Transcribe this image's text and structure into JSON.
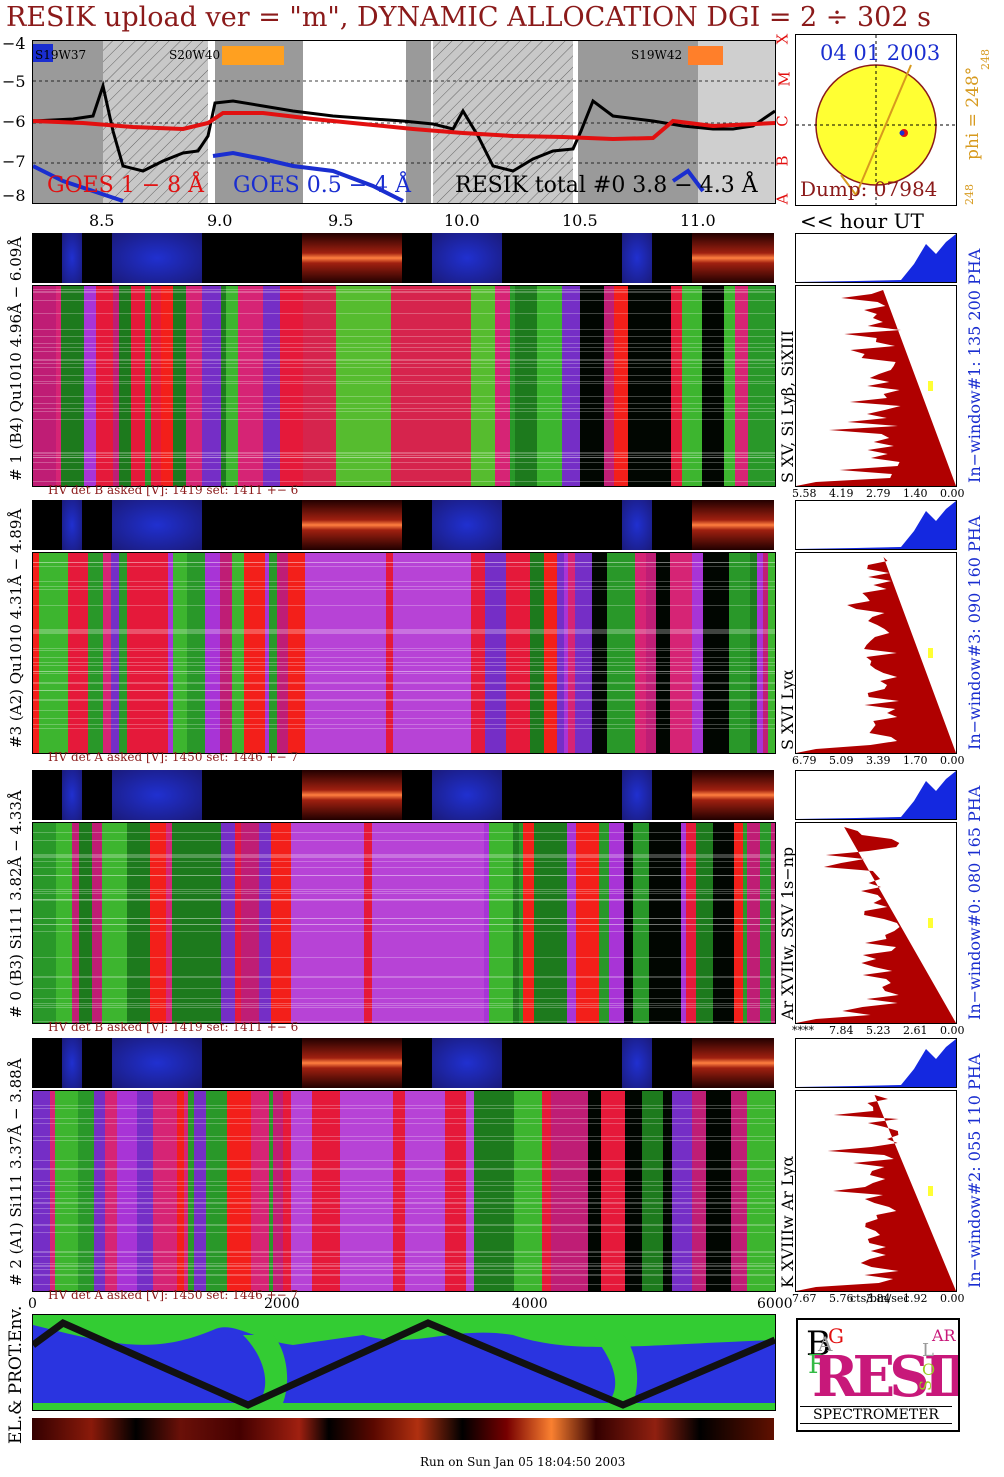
{
  "title": "RESIK upload ver = \"m\", DYNAMIC ALLOCATION  DGI =   2 ÷ 302 s",
  "goes": {
    "y_ticks": [
      "−4",
      "−5",
      "−6",
      "−7",
      "−8"
    ],
    "class_letters": [
      "X",
      "M",
      "C",
      "B",
      "A"
    ],
    "legend_goes_long": "GOES 1 − 8 Å",
    "legend_goes_short": "GOES 0.5 − 4 Å",
    "legend_resik": "RESIK total #0  3.8 − 4.3 Å",
    "regions": [
      {
        "label": "S19W37"
      },
      {
        "label": "S20W40"
      },
      {
        "label": "S19W42"
      }
    ]
  },
  "hour_ticks": [
    "8.5",
    "9.0",
    "9.5",
    "10.0",
    "10.5",
    "11.0"
  ],
  "hour_label": "<< hour UT",
  "sun": {
    "date": "04 01 2003",
    "phi": "phi = 248°",
    "phi_sup": "248",
    "phi_bottom": "248",
    "dump": "Dump: 07984"
  },
  "channels": [
    {
      "left_label": "# 1 (B4) Qu1010 4.96Å − 6.09Å",
      "line_label": "S XV, Si Lyβ, SiXIII",
      "hv": "HV det B asked [V]:  1419 set:  1411  +−    6",
      "window": "In−window#1:  135 200 PHA",
      "axis": [
        "5.58",
        "4.19",
        "2.79",
        "1.40",
        "0.00"
      ]
    },
    {
      "left_label": "#3 (A2) Qu1010  4.31Å − 4.89Å",
      "line_label": "S XVI Lyα",
      "hv": "HV det A asked [V]:  1450 set:  1446  +−    7",
      "window": "In−window#3:  090 160 PHA",
      "axis": [
        "6.79",
        "5.09",
        "3.39",
        "1.70",
        "0.00"
      ]
    },
    {
      "left_label": "# 0 (B3) Si111  3.82Å − 4.33Å",
      "line_label": "Ar XVIIw, SXV 1s−np",
      "hv": "HV det B asked [V]:  1419 set:  1411  +−    6",
      "window": "In−window#0:  080 165 PHA",
      "axis": [
        "****",
        "7.84",
        "5.23",
        "2.61",
        "0.00"
      ]
    },
    {
      "left_label": "# 2 (A1) Si111  3.37Å − 3.88Å",
      "line_label": "K XVIIIw  Ar Lyα",
      "hv": "HV det A asked [V]:  1450 set:  1446  +−    7",
      "window": "In−window#2:  055 110 PHA",
      "axis": [
        "7.67",
        "5.76",
        "3.84",
        "1.92",
        "0.00"
      ]
    }
  ],
  "bottom_axis": [
    "0",
    "2000",
    "4000",
    "6000"
  ],
  "hist_unit": "cts/bin/sec",
  "env_label": "EL.& PROT.Env.",
  "logo": {
    "b": "B",
    "r": "R",
    "a": "A",
    "g": "G",
    "s": "S",
    "o": "O",
    "l": "L",
    "ar": "AR",
    "word": "RESIK",
    "spectrometer": "SPECTROMETER"
  },
  "run_on": "Run on Sun Jan 05 18:04:50 2003",
  "colors": {
    "title": "#8b1a1a",
    "goes_long": "#e21010",
    "goes_short": "#1a2ed0",
    "sun": "#ffff33",
    "hist_red": "#b00000",
    "hist_blue": "#1428e0"
  }
}
